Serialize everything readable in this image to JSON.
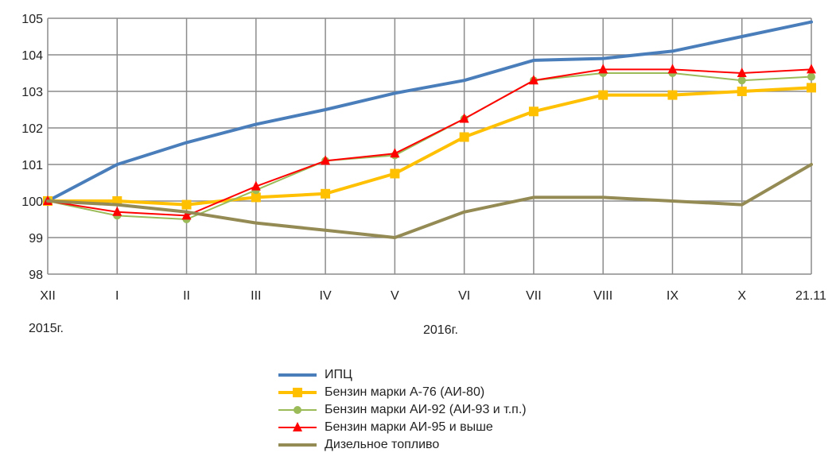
{
  "chart_data": {
    "type": "line",
    "categories": [
      "XII",
      "I",
      "II",
      "III",
      "IV",
      "V",
      "VI",
      "VII",
      "VIII",
      "IX",
      "X",
      "21.11"
    ],
    "ylim": [
      98,
      105
    ],
    "yticks": [
      98,
      99,
      100,
      101,
      102,
      103,
      104,
      105
    ],
    "grid": true,
    "legend_position": "bottom",
    "period_labels": {
      "start": "2015г.",
      "year": "2016г."
    },
    "series": [
      {
        "name": "ИПЦ",
        "color": "#4a7ebb",
        "marker": "none",
        "width": 4,
        "values": [
          100,
          101,
          101.6,
          102.1,
          102.5,
          102.95,
          103.3,
          103.85,
          103.9,
          104.1,
          104.5,
          104.9
        ]
      },
      {
        "name": "Бензин марки А-76 (АИ-80)",
        "color": "#ffc000",
        "marker": "square",
        "width": 4,
        "values": [
          100,
          100,
          99.9,
          100.1,
          100.2,
          100.75,
          101.75,
          102.45,
          102.9,
          102.9,
          103,
          103.1
        ]
      },
      {
        "name": "Бензин марки АИ-92 (АИ-93 и т.п.)",
        "color": "#9bbb59",
        "marker": "circle",
        "width": 2,
        "values": [
          100,
          99.6,
          99.5,
          100.3,
          101.1,
          101.25,
          102.25,
          103.3,
          103.5,
          103.5,
          103.3,
          103.4
        ]
      },
      {
        "name": "Бензин марки АИ-95 и выше",
        "color": "#ff0000",
        "marker": "triangle",
        "width": 2,
        "values": [
          100,
          99.7,
          99.6,
          100.4,
          101.1,
          101.3,
          102.25,
          103.3,
          103.6,
          103.6,
          103.5,
          103.6
        ]
      },
      {
        "name": "Дизельное топливо",
        "color": "#948a54",
        "marker": "none",
        "width": 4,
        "values": [
          100,
          99.9,
          99.7,
          99.4,
          99.2,
          99.0,
          99.7,
          100.1,
          100.1,
          100.0,
          99.9,
          101.0
        ]
      }
    ]
  }
}
